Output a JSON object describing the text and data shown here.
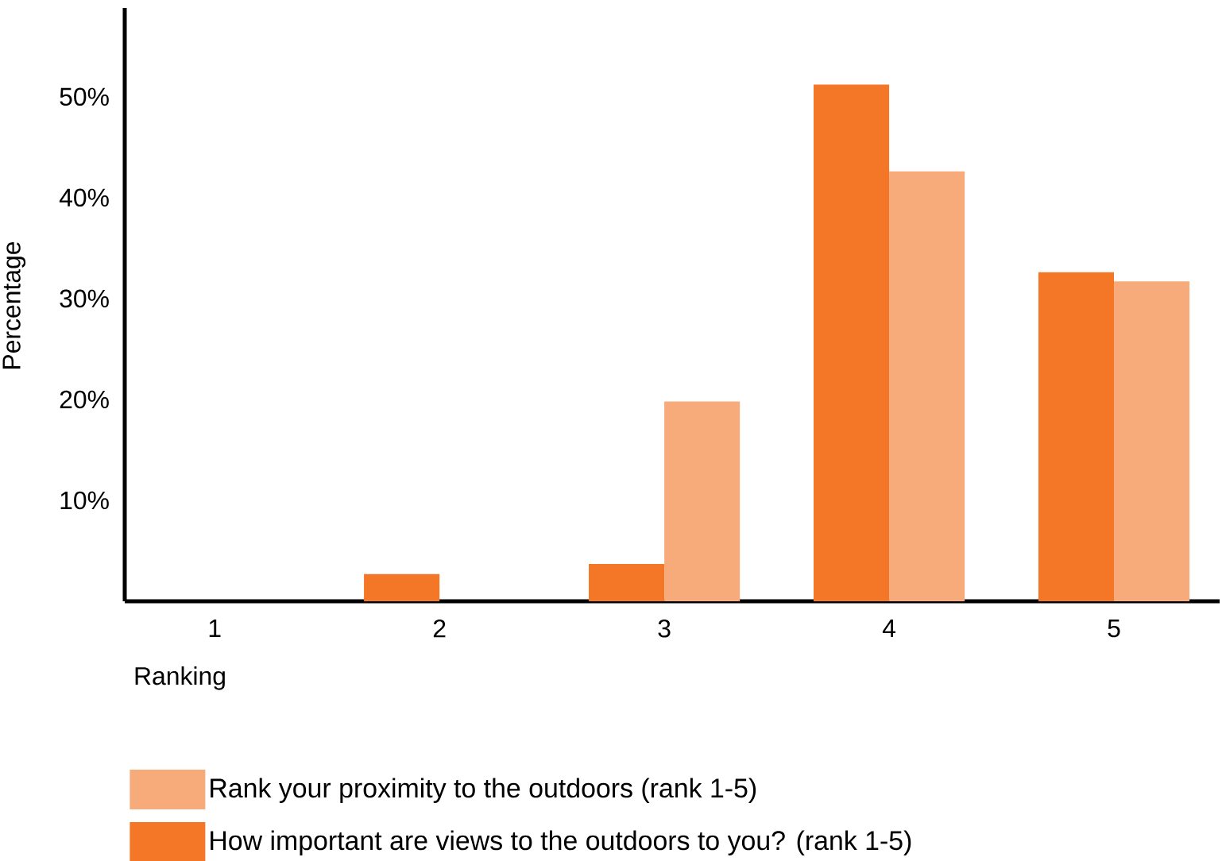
{
  "chart_data": {
    "type": "bar",
    "xlabel": "Ranking",
    "ylabel": "Percentage",
    "categories": [
      "1",
      "2",
      "3",
      "4",
      "5"
    ],
    "series": [
      {
        "name": "How important are views to the outdoors to you? (rank 1-5)",
        "color": "#f37726",
        "values": [
          0,
          2.7,
          3.7,
          51.2,
          32.6
        ]
      },
      {
        "name": "Rank your proximity to the outdoors (rank 1-5)",
        "color": "#f7ab7b",
        "values": [
          0,
          0,
          19.8,
          42.6,
          31.7
        ]
      }
    ],
    "ylim": [
      0,
      58.8
    ],
    "yticks": [
      {
        "value": 10,
        "label": "10%"
      },
      {
        "value": 20,
        "label": "20%"
      },
      {
        "value": 30,
        "label": "30%"
      },
      {
        "value": 40,
        "label": "40%"
      },
      {
        "value": 50,
        "label": "50%"
      }
    ],
    "grid": false,
    "legend": "bottom"
  }
}
